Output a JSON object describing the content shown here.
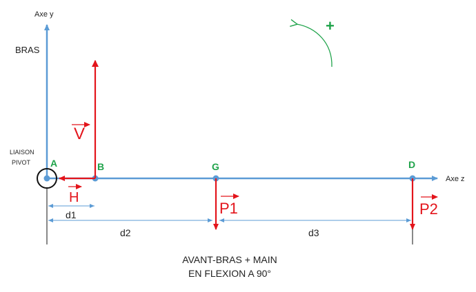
{
  "colors": {
    "axis": "#5b9bd5",
    "force": "#e3141b",
    "point_label": "#1fa34a",
    "text": "#222222",
    "rotation": "#1fa34a"
  },
  "axes": {
    "y_label": "Axe y",
    "z_label": "Axe z"
  },
  "labels": {
    "bras": "BRAS",
    "liaison_line1": "LIAISON",
    "liaison_line2": "PIVOT",
    "caption_line1": "AVANT-BRAS + MAIN",
    "caption_line2": "EN FLEXION A 90°",
    "rotation_sign": "+"
  },
  "points": {
    "A": "A",
    "B": "B",
    "G": "G",
    "D": "D"
  },
  "forces": {
    "V": "V",
    "H": "H",
    "P1": "P1",
    "P2": "P2"
  },
  "distances": {
    "d1": "d1",
    "d2": "d2",
    "d3": "d3"
  }
}
